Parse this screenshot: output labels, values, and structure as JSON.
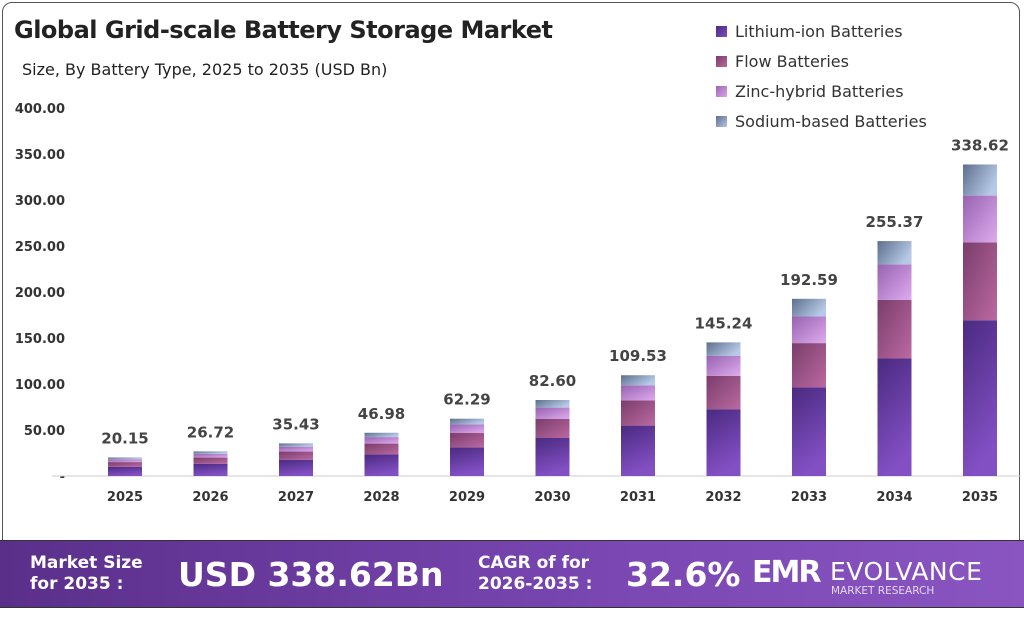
{
  "chart_data": {
    "type": "bar",
    "stacked": true,
    "title": "Global Grid-scale Battery Storage Market",
    "subtitle": "Size, By Battery Type, 2025 to 2035 (USD Bn)",
    "categories": [
      "2025",
      "2026",
      "2027",
      "2028",
      "2029",
      "2030",
      "2031",
      "2032",
      "2033",
      "2034",
      "2035"
    ],
    "totals": [
      "20.15",
      "26.72",
      "35.43",
      "46.98",
      "62.29",
      "82.60",
      "109.53",
      "145.24",
      "192.59",
      "255.37",
      "338.62"
    ],
    "series": [
      {
        "name": "Lithium-ion Batteries",
        "color": "#6a3aa6",
        "values": [
          10.08,
          13.36,
          17.72,
          23.49,
          31.15,
          41.3,
          54.77,
          72.62,
          96.3,
          127.69,
          169.31
        ]
      },
      {
        "name": "Flow Batteries",
        "color": "#a5598f",
        "values": [
          5.04,
          6.68,
          8.86,
          11.75,
          15.57,
          20.65,
          27.38,
          36.31,
          48.15,
          63.84,
          84.66
        ]
      },
      {
        "name": "Zinc-hybrid Batteries",
        "color": "#c48fd6",
        "values": [
          3.02,
          4.01,
          5.31,
          7.05,
          9.34,
          12.39,
          16.43,
          21.79,
          28.89,
          38.31,
          50.79
        ]
      },
      {
        "name": "Sodium-based Batteries",
        "color": "#8fa3c6",
        "values": [
          2.01,
          2.67,
          3.54,
          4.69,
          6.23,
          8.26,
          10.95,
          14.52,
          19.25,
          25.53,
          33.86
        ]
      }
    ],
    "yticks": [
      "-",
      "50.00",
      "100.00",
      "150.00",
      "200.00",
      "250.00",
      "300.00",
      "350.00",
      "400.00"
    ],
    "ylim": [
      0,
      400
    ],
    "grid": false,
    "legend": "top-right"
  },
  "footer": {
    "market_label_1": "Market Size",
    "market_label_2": "for 2035 :",
    "market_value": "USD 338.62Bn",
    "cagr_label_1": "CAGR of for",
    "cagr_label_2": "2026-2035 :",
    "cagr_value": "32.6%",
    "logo_mark": "EMR",
    "logo_name": "EVOLVANCE",
    "logo_sub": "MARKET RESEARCH"
  }
}
